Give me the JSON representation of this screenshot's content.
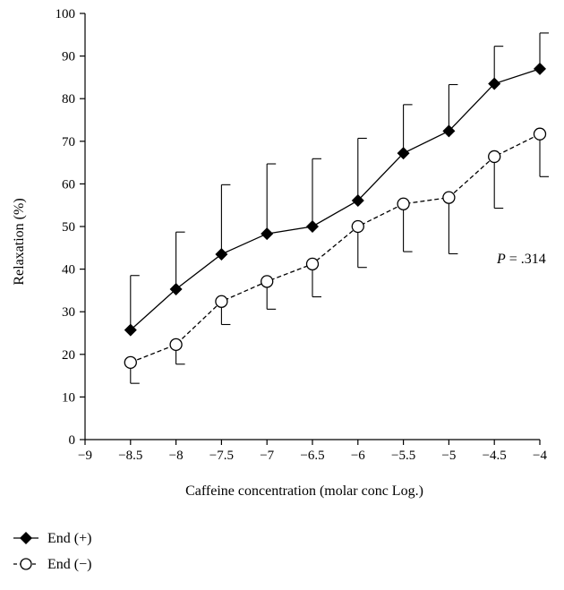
{
  "chart_data": {
    "type": "line",
    "xlabel": "Caffeine concentration (molar conc Log.)",
    "ylabel": "Relaxation (%)",
    "xlim": [
      -9,
      -4
    ],
    "ylim": [
      0,
      100
    ],
    "x_ticks": [
      -9,
      -8.5,
      -8,
      -7.5,
      -7,
      -6.5,
      -6,
      -5.5,
      -5,
      -4.5,
      -4
    ],
    "y_ticks": [
      0,
      10,
      20,
      30,
      40,
      50,
      60,
      70,
      80,
      90,
      100
    ],
    "x_tick_labels": [
      "−9",
      "−8.5",
      "−8",
      "−7.5",
      "−7",
      "−6.5",
      "−6",
      "−5.5",
      "−5",
      "−4.5",
      "−4"
    ],
    "y_tick_labels": [
      "0",
      "10",
      "20",
      "30",
      "40",
      "50",
      "60",
      "70",
      "80",
      "90",
      "100"
    ],
    "x": [
      -8.5,
      -8,
      -7.5,
      -7,
      -6.5,
      -6,
      -5.5,
      -5,
      -4.5,
      -4
    ],
    "series": [
      {
        "name": "End (+)",
        "values": [
          25.7,
          35.3,
          43.5,
          48.3,
          50.0,
          56.1,
          67.2,
          72.4,
          83.5,
          87.0
        ],
        "error_upper": [
          38.5,
          48.7,
          59.8,
          64.7,
          65.9,
          70.7,
          78.6,
          83.3,
          92.3,
          95.4
        ],
        "color": "#000000",
        "marker": "filled-diamond",
        "line_style": "solid",
        "error_direction": "up"
      },
      {
        "name": "End (−)",
        "values": [
          18.1,
          22.3,
          32.4,
          37.1,
          41.2,
          50.0,
          55.3,
          56.8,
          66.4,
          71.7
        ],
        "error_lower": [
          13.2,
          17.7,
          27.0,
          30.6,
          33.5,
          40.4,
          44.1,
          43.6,
          54.3,
          61.7
        ],
        "color": "#000000",
        "marker": "open-circle",
        "line_style": "dashed",
        "error_direction": "down"
      }
    ],
    "annotation": {
      "italic": "P",
      "text": " = .314"
    },
    "legend": {
      "placement": "bottom-left",
      "entries": [
        "End (+)",
        "End (−)"
      ]
    },
    "grid": false
  }
}
